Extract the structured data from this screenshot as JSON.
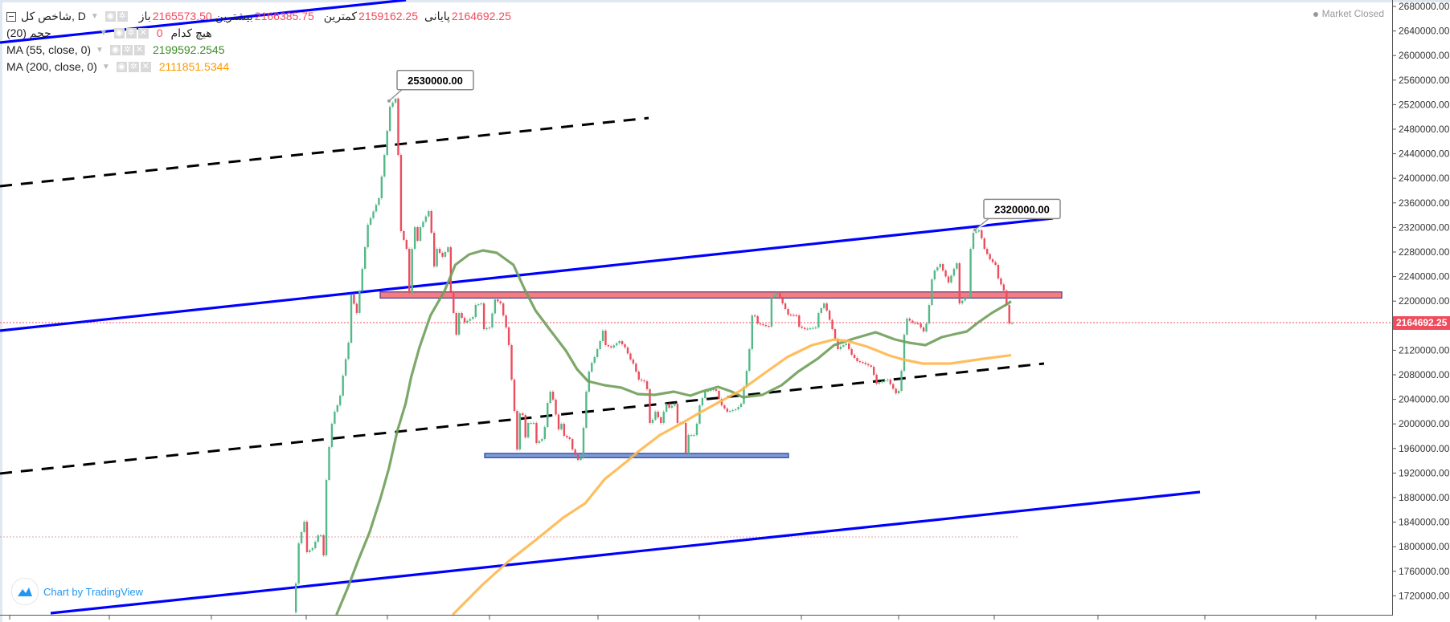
{
  "header": {
    "symbol": "شاخص کل, D",
    "ohlc": [
      {
        "label": "باز",
        "value": "2165573.50"
      },
      {
        "label": "بیشترین",
        "value": "2166385.75"
      },
      {
        "label": "کمترین",
        "value": "2159162.25"
      },
      {
        "label": "پایانی",
        "value": "2164692.25"
      }
    ]
  },
  "indicators": [
    {
      "name": "حجم (20)",
      "value": "0",
      "note": "هیچ کدام"
    },
    {
      "name": "MA (55, close, 0)",
      "value": "2199592.2545",
      "color": "#3d8b29"
    },
    {
      "name": "MA (200, close, 0)",
      "value": "2111851.5344",
      "color": "#ff9800"
    }
  ],
  "status": "Market Closed",
  "watermark": "Chart by TradingView",
  "colors": {
    "up": "#53b987",
    "down": "#eb4d5c",
    "ma55": "#6f9e5a",
    "ma200": "#ffb74d",
    "trend_blue": "#0000ff",
    "last_price": "#ef4d5e"
  },
  "chart_data": {
    "type": "candlestick",
    "ylim": [
      1700000,
      2690000
    ],
    "y_ticks": [
      "2680000.00",
      "2640000.00",
      "2600000.00",
      "2560000.00",
      "2520000.00",
      "2480000.00",
      "2440000.00",
      "2400000.00",
      "2360000.00",
      "2320000.00",
      "2280000.00",
      "2240000.00",
      "2200000.00",
      "2120000.00",
      "2080000.00",
      "2040000.00",
      "2000000.00",
      "1960000.00",
      "1920000.00",
      "1880000.00",
      "1840000.00",
      "1800000.00",
      "1760000.00",
      "1720000.00"
    ],
    "last_price": "2164692.25",
    "bar_count": 260,
    "closes_by_bar": [
      [
        0,
        1740100
      ],
      [
        1,
        1805500
      ],
      [
        2,
        1823800
      ],
      [
        3,
        1840800
      ],
      [
        4,
        1791100
      ],
      [
        6,
        1797600
      ],
      [
        8,
        1818600
      ],
      [
        9,
        1818600
      ],
      [
        10,
        1785900
      ],
      [
        11,
        1908800
      ],
      [
        12,
        1962400
      ],
      [
        13,
        2000300
      ],
      [
        14,
        2020000
      ],
      [
        15,
        2030300
      ],
      [
        16,
        2046000
      ],
      [
        17,
        2078700
      ],
      [
        19,
        2132300
      ],
      [
        20,
        2210700
      ],
      [
        22,
        2180700
      ],
      [
        24,
        2252700
      ],
      [
        25,
        2287800
      ],
      [
        26,
        2324400
      ],
      [
        30,
        2367600
      ],
      [
        32,
        2438200
      ],
      [
        33,
        2477400
      ],
      [
        34,
        2516600
      ],
      [
        36,
        2530000
      ],
      [
        37,
        2438200
      ],
      [
        38,
        2314000
      ],
      [
        40,
        2285200
      ],
      [
        41,
        2213300
      ],
      [
        42,
        2285200
      ],
      [
        43,
        2320500
      ],
      [
        44,
        2298300
      ],
      [
        45,
        2320500
      ],
      [
        48,
        2346700
      ],
      [
        49,
        2311400
      ],
      [
        50,
        2256500
      ],
      [
        51,
        2285200
      ],
      [
        53,
        2272200
      ],
      [
        55,
        2287800
      ],
      [
        56,
        2215900
      ],
      [
        58,
        2145400
      ],
      [
        59,
        2180700
      ],
      [
        61,
        2165000
      ],
      [
        64,
        2174100
      ],
      [
        65,
        2193700
      ],
      [
        67,
        2196300
      ],
      [
        68,
        2154500
      ],
      [
        70,
        2157100
      ],
      [
        72,
        2202900
      ],
      [
        74,
        2196300
      ],
      [
        75,
        2176700
      ],
      [
        76,
        2157100
      ],
      [
        77,
        2128400
      ],
      [
        78,
        2072200
      ],
      [
        79,
        2021200
      ],
      [
        80,
        1958400
      ],
      [
        81,
        2017300
      ],
      [
        82,
        2014600
      ],
      [
        83,
        1978000
      ],
      [
        84,
        2001600
      ],
      [
        86,
        2001600
      ],
      [
        87,
        1968900
      ],
      [
        89,
        1975400
      ],
      [
        90,
        1995000
      ],
      [
        91,
        2034200
      ],
      [
        92,
        2052500
      ],
      [
        93,
        2039500
      ],
      [
        95,
        1991100
      ],
      [
        96,
        2000300
      ],
      [
        97,
        1980600
      ],
      [
        99,
        1975400
      ],
      [
        100,
        1958400
      ],
      [
        102,
        1941400
      ],
      [
        103,
        1945000
      ],
      [
        104,
        1993700
      ],
      [
        105,
        2052500
      ],
      [
        106,
        2085200
      ],
      [
        107,
        2099600
      ],
      [
        108,
        2108800
      ],
      [
        110,
        2134900
      ],
      [
        111,
        2151900
      ],
      [
        112,
        2128400
      ],
      [
        114,
        2124500
      ],
      [
        117,
        2134900
      ],
      [
        119,
        2124500
      ],
      [
        121,
        2104900
      ],
      [
        122,
        2098300
      ],
      [
        124,
        2072200
      ],
      [
        126,
        2069600
      ],
      [
        127,
        2056500
      ],
      [
        128,
        2001600
      ],
      [
        129,
        2006800
      ],
      [
        130,
        2019900
      ],
      [
        132,
        2001600
      ],
      [
        133,
        2019900
      ],
      [
        134,
        2032900
      ],
      [
        135,
        2026400
      ],
      [
        137,
        2032900
      ],
      [
        138,
        2001600
      ],
      [
        140,
        2001600
      ],
      [
        141,
        1951900
      ],
      [
        142,
        1982000
      ],
      [
        144,
        1982000
      ],
      [
        145,
        2000300
      ],
      [
        146,
        2030300
      ],
      [
        148,
        2053900
      ],
      [
        149,
        2053900
      ],
      [
        151,
        2056500
      ],
      [
        152,
        2053900
      ],
      [
        153,
        2040800
      ],
      [
        154,
        2030300
      ],
      [
        156,
        2019900
      ],
      [
        157,
        2021200
      ],
      [
        159,
        2023800
      ],
      [
        160,
        2027700
      ],
      [
        161,
        2032900
      ],
      [
        162,
        2060400
      ],
      [
        163,
        2086500
      ],
      [
        164,
        2121800
      ],
      [
        165,
        2176700
      ],
      [
        166,
        2175400
      ],
      [
        167,
        2163600
      ],
      [
        171,
        2158400
      ],
      [
        172,
        2206800
      ],
      [
        174,
        2213300
      ],
      [
        176,
        2196300
      ],
      [
        178,
        2178000
      ],
      [
        181,
        2176700
      ],
      [
        182,
        2158400
      ],
      [
        184,
        2154500
      ],
      [
        188,
        2157100
      ],
      [
        189,
        2180700
      ],
      [
        191,
        2196300
      ],
      [
        192,
        2184600
      ],
      [
        194,
        2154500
      ],
      [
        196,
        2121800
      ],
      [
        197,
        2125800
      ],
      [
        199,
        2131000
      ],
      [
        201,
        2112700
      ],
      [
        203,
        2102200
      ],
      [
        205,
        2099600
      ],
      [
        208,
        2093100
      ],
      [
        209,
        2080000
      ],
      [
        210,
        2065600
      ],
      [
        212,
        2069600
      ],
      [
        214,
        2072200
      ],
      [
        217,
        2049900
      ],
      [
        218,
        2053800
      ],
      [
        219,
        2086500
      ],
      [
        220,
        2145400
      ],
      [
        221,
        2171500
      ],
      [
        223,
        2165000
      ],
      [
        225,
        2163600
      ],
      [
        227,
        2150600
      ],
      [
        228,
        2163600
      ],
      [
        229,
        2193700
      ],
      [
        230,
        2235400
      ],
      [
        231,
        2249900
      ],
      [
        233,
        2260400
      ],
      [
        234,
        2249900
      ],
      [
        236,
        2230300
      ],
      [
        238,
        2252700
      ],
      [
        239,
        2261700
      ],
      [
        240,
        2196300
      ],
      [
        242,
        2205500
      ],
      [
        243,
        2206800
      ],
      [
        244,
        2285200
      ],
      [
        245,
        2311400
      ],
      [
        247,
        2315300
      ],
      [
        248,
        2302200
      ],
      [
        249,
        2285200
      ],
      [
        251,
        2268200
      ],
      [
        253,
        2259100
      ],
      [
        254,
        2236900
      ],
      [
        256,
        2217300
      ],
      [
        257,
        2193700
      ],
      [
        258,
        2163600
      ],
      [
        259,
        2164692.25
      ]
    ],
    "ma55_by_bar": [
      [
        15,
        1689200
      ],
      [
        19,
        1732300
      ],
      [
        23,
        1779400
      ],
      [
        27,
        1823800
      ],
      [
        31,
        1880000
      ],
      [
        34,
        1928400
      ],
      [
        37,
        1988500
      ],
      [
        40,
        2032900
      ],
      [
        42,
        2076000
      ],
      [
        45,
        2124500
      ],
      [
        49,
        2176700
      ],
      [
        54,
        2215900
      ],
      [
        58,
        2259100
      ],
      [
        63,
        2276100
      ],
      [
        68,
        2282600
      ],
      [
        73,
        2278700
      ],
      [
        79,
        2259100
      ],
      [
        83,
        2219900
      ],
      [
        87,
        2184600
      ],
      [
        92,
        2154500
      ],
      [
        98,
        2119200
      ],
      [
        102,
        2089200
      ],
      [
        106,
        2069500
      ],
      [
        112,
        2063000
      ],
      [
        118,
        2059100
      ],
      [
        124,
        2048600
      ],
      [
        130,
        2047300
      ],
      [
        137,
        2052500
      ],
      [
        143,
        2046000
      ],
      [
        147,
        2052500
      ],
      [
        153,
        2060400
      ],
      [
        158,
        2052500
      ],
      [
        162,
        2043400
      ],
      [
        169,
        2047300
      ],
      [
        176,
        2063000
      ],
      [
        182,
        2085200
      ],
      [
        189,
        2106100
      ],
      [
        195,
        2128400
      ],
      [
        202,
        2138800
      ],
      [
        210,
        2149300
      ],
      [
        217,
        2137500
      ],
      [
        222,
        2132300
      ],
      [
        228,
        2128400
      ],
      [
        234,
        2141400
      ],
      [
        239,
        2146700
      ],
      [
        243,
        2150600
      ],
      [
        247,
        2165000
      ],
      [
        252,
        2180700
      ],
      [
        257,
        2193700
      ],
      [
        259,
        2199592
      ]
    ],
    "ma200_by_bar": [
      [
        57,
        1689200
      ],
      [
        68,
        1738800
      ],
      [
        77,
        1775400
      ],
      [
        87,
        1810700
      ],
      [
        97,
        1847300
      ],
      [
        105,
        1870900
      ],
      [
        112,
        1910100
      ],
      [
        120,
        1938800
      ],
      [
        124,
        1954500
      ],
      [
        132,
        1982000
      ],
      [
        140,
        2001600
      ],
      [
        147,
        2019900
      ],
      [
        155,
        2039500
      ],
      [
        161,
        2053800
      ],
      [
        169,
        2080000
      ],
      [
        178,
        2108800
      ],
      [
        187,
        2128400
      ],
      [
        195,
        2137500
      ],
      [
        200,
        2134900
      ],
      [
        207,
        2125800
      ],
      [
        215,
        2111400
      ],
      [
        220,
        2104900
      ],
      [
        227,
        2098300
      ],
      [
        237,
        2098300
      ],
      [
        249,
        2106100
      ],
      [
        259,
        2111852
      ]
    ],
    "annotations": [
      {
        "text": "2530000.00",
        "price": 2530000
      },
      {
        "text": "2320000.00",
        "price": 2320000
      }
    ],
    "zones": [
      {
        "type": "resistance",
        "from": 2205000,
        "to": 2215000,
        "color": "#f77c80"
      },
      {
        "type": "support",
        "from": 1945000,
        "to": 1952000,
        "color": "#7f9ad6"
      }
    ]
  }
}
